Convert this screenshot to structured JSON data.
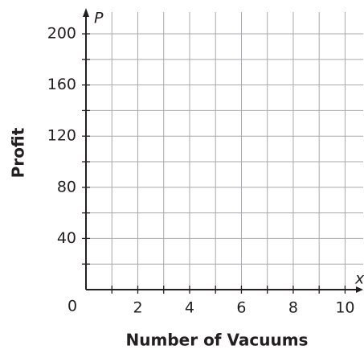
{
  "chart_data": {
    "type": "line",
    "xlabel": "Number of Vacuums",
    "ylabel": "Profit",
    "x_variable": "x",
    "y_variable": "P",
    "origin_label": "0",
    "xlim": [
      0,
      10.7
    ],
    "ylim": [
      0,
      217
    ],
    "xticks": [
      2,
      4,
      6,
      8,
      10
    ],
    "yticks": [
      40,
      80,
      120,
      160,
      200
    ],
    "xgrid": [
      1,
      2,
      3,
      4,
      5,
      6,
      7,
      8,
      9,
      10
    ],
    "ygrid": [
      20,
      40,
      60,
      80,
      100,
      120,
      140,
      160,
      180,
      200
    ],
    "grid": true,
    "series": []
  }
}
